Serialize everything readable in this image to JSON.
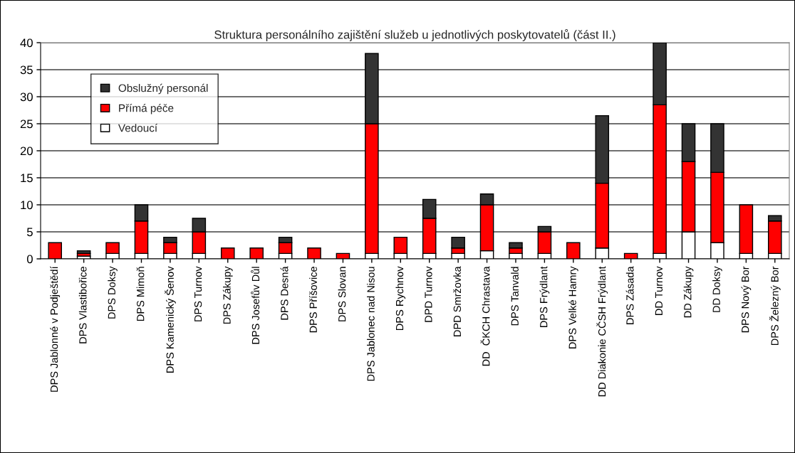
{
  "chart_data": {
    "type": "bar",
    "title": "Struktura personálního zajištění služeb u jednotlivých poskytovatelů (část II.)",
    "stacked": true,
    "categories": [
      "DPS Jablonné v Podještědí",
      "DPS Vlastibořice",
      "DPS Doksy",
      "DPS Mimoň",
      "DPS Kamenický Šenov",
      "DPS Turnov",
      "DPS Zákupy",
      "DPS Josefův Důl",
      "DPS Desná",
      "DPS Příšovice",
      "DPS Slovan",
      "DPS Jablonec nad Nisou",
      "DPS Rychnov",
      "DPD Turnov",
      "DPD Smržovka",
      "DD  ČKCH Chrastava",
      "DPS Tanvald",
      "DPS Frýdlant",
      "DPS Velké Hamry",
      "DD Diakonie CČSH Frýdlant",
      "DPS Zásada",
      "DD Turnov",
      "DD Zákupy",
      "DD Doksy",
      "DPS Nový Bor",
      "DPS Železný Bor"
    ],
    "series": [
      {
        "name": "Vedoucí",
        "color": "#ffffff",
        "values": [
          0,
          0.5,
          1,
          1,
          1,
          1,
          0,
          0,
          1,
          0,
          0,
          1,
          1,
          1,
          1,
          1.5,
          1,
          1,
          0,
          2,
          0,
          1,
          5,
          3,
          1,
          1
        ]
      },
      {
        "name": "Přímá péče",
        "color": "#ff0000",
        "values": [
          3,
          0.5,
          2,
          6,
          2,
          4,
          2,
          2,
          2,
          2,
          1,
          24,
          3,
          6.5,
          1,
          8.5,
          1,
          4,
          3,
          12,
          1,
          27.5,
          13,
          13,
          9,
          6
        ]
      },
      {
        "name": "Obslužný personál",
        "color": "#333333",
        "values": [
          0,
          0.5,
          0,
          3,
          1,
          2.5,
          0,
          0,
          1,
          0,
          0,
          13,
          0,
          3.5,
          2,
          2,
          1,
          1,
          0,
          12.5,
          0,
          11.5,
          7,
          9,
          0,
          1
        ]
      }
    ],
    "ylim": [
      0,
      40
    ],
    "yticks": [
      0,
      5,
      10,
      15,
      20,
      25,
      30,
      35,
      40
    ],
    "grid": "y",
    "legend": "top left"
  }
}
